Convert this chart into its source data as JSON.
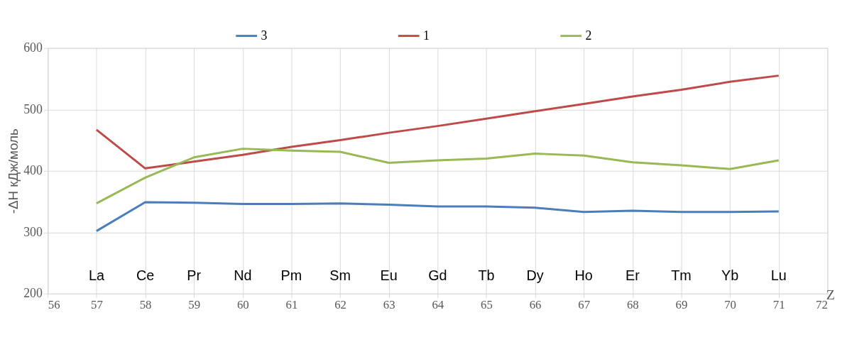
{
  "chart_data": {
    "type": "line",
    "x": [
      57,
      58,
      59,
      60,
      61,
      62,
      63,
      64,
      65,
      66,
      67,
      68,
      69,
      70,
      71
    ],
    "series": [
      {
        "name": "3",
        "color": "#4a7ebb",
        "values": [
          302,
          349,
          348,
          346,
          346,
          347,
          345,
          342,
          342,
          340,
          333,
          335,
          333,
          333,
          334
        ]
      },
      {
        "name": "1",
        "color": "#be4b48",
        "values": [
          467,
          404,
          415,
          426,
          439,
          450,
          462,
          473,
          485,
          497,
          509,
          521,
          532,
          545,
          555
        ]
      },
      {
        "name": "2",
        "color": "#98b954",
        "values": [
          347,
          389,
          422,
          436,
          433,
          431,
          413,
          417,
          420,
          428,
          425,
          414,
          409,
          403,
          417
        ]
      }
    ],
    "xlabel": "Z",
    "ylabel": "-ΔН кДж/моль",
    "xlim": [
      56,
      72
    ],
    "xticks": [
      56,
      57,
      58,
      59,
      60,
      61,
      62,
      63,
      64,
      65,
      66,
      67,
      68,
      69,
      70,
      71,
      72
    ],
    "ylim": [
      200,
      600
    ],
    "yticks": [
      200,
      300,
      400,
      500,
      600
    ],
    "annotations": [
      "La",
      "Ce",
      "Pr",
      "Nd",
      "Pm",
      "Sm",
      "Eu",
      "Gd",
      "Tb",
      "Dy",
      "Ho",
      "Er",
      "Tm",
      "Yb",
      "Lu"
    ],
    "grid": true,
    "legend": "top",
    "marker": "none",
    "line_style": "solid"
  }
}
